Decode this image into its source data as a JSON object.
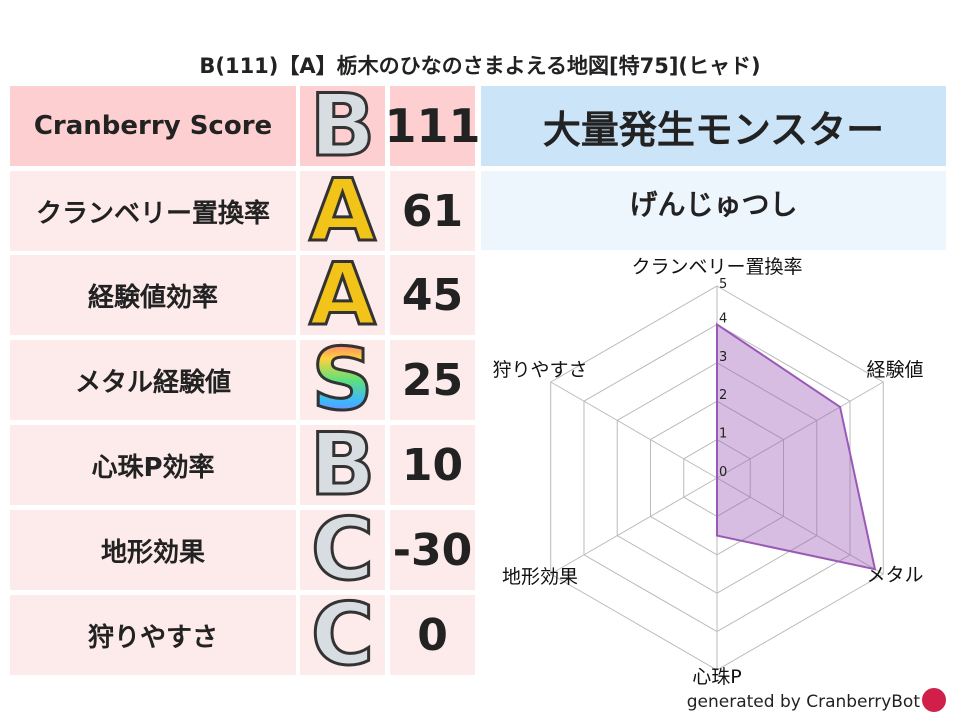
{
  "title": "B(111)【A】栃木のひなのさまよえる地図[特75](ヒャド)",
  "rows": [
    {
      "label": "Cranberry Score",
      "grade": "B",
      "value": "111"
    },
    {
      "label": "クランベリー置換率",
      "grade": "A",
      "value": "61"
    },
    {
      "label": "経験値効率",
      "grade": "A",
      "value": "45"
    },
    {
      "label": "メタル経験値",
      "grade": "S",
      "value": "25"
    },
    {
      "label": "心珠P効率",
      "grade": "B",
      "value": "10"
    },
    {
      "label": "地形効果",
      "grade": "C",
      "value": "-30"
    },
    {
      "label": "狩りやすさ",
      "grade": "C",
      "value": "0"
    }
  ],
  "right": {
    "header": "大量発生モンスター",
    "monster": "げんじゅつし"
  },
  "footer": "generated by CranberryBot",
  "colors": {
    "header_pink": "#fdcfd1",
    "row_pink": "#fdeaea",
    "header_blue": "#cce4f8",
    "sub_blue": "#eef6fd",
    "radar_fill": "#9b59b6"
  },
  "chart_data": {
    "type": "radar",
    "axes": [
      "クランベリー置換率",
      "経験値",
      "メタル",
      "心珠P",
      "地形効果",
      "狩りやすさ"
    ],
    "values": [
      4,
      3.7,
      4.75,
      1.5,
      0,
      0
    ],
    "range": [
      0,
      5
    ],
    "ticks": [
      "0",
      "1",
      "2",
      "3",
      "4",
      "5"
    ]
  }
}
